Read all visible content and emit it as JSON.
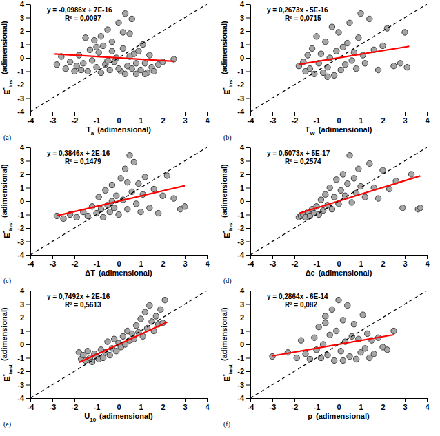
{
  "chart_data": [
    {
      "type": "scatter",
      "panel_label": "(a)",
      "x_label": {
        "text": "T",
        "sub": "a",
        "unit": "(adimensional)"
      },
      "y_label": {
        "text": "E",
        "sup": "*",
        "sub": "inst",
        "unit": "(adimensional)"
      },
      "annotations": [
        "y = -0,0986x + 7E-16",
        "R² = 0,0097"
      ],
      "xlim": [
        -4,
        4
      ],
      "ylim": [
        -4,
        4
      ],
      "xticks": [
        -4,
        -3,
        -2,
        -1,
        0,
        1,
        2,
        3,
        4
      ],
      "yticks": [
        -4,
        -3,
        -2,
        -1,
        0,
        1,
        2,
        3,
        4
      ],
      "grid": false,
      "series": [
        {
          "type": "scatter",
          "marker": "circle",
          "color": "#a6a6a6",
          "x": [
            -2.8,
            -2.6,
            -2.4,
            -2.2,
            -2.0,
            -1.9,
            -1.8,
            -1.7,
            -1.6,
            -1.5,
            -1.4,
            -1.3,
            -1.2,
            -1.1,
            -1.0,
            -0.9,
            -0.8,
            -0.7,
            -0.6,
            -0.5,
            -0.4,
            -0.3,
            -0.2,
            -0.1,
            0.0,
            0.1,
            0.2,
            0.3,
            0.4,
            0.5,
            0.6,
            0.7,
            0.8,
            0.9,
            1.0,
            1.1,
            1.2,
            1.3,
            1.4,
            1.5,
            1.6,
            1.8,
            2.0,
            2.5,
            -1.0,
            -0.5,
            0.2,
            0.3,
            0.6,
            -0.3,
            0.8,
            1.2,
            -0.8,
            0.0,
            0.5
          ],
          "values": [
            -0.5,
            0.1,
            -0.8,
            -0.3,
            -1.0,
            -0.6,
            0.2,
            -0.9,
            -0.4,
            1.5,
            -1.0,
            0.6,
            -0.2,
            1.3,
            -0.7,
            0.4,
            -1.1,
            0.9,
            -0.5,
            2.1,
            -0.9,
            1.2,
            -0.3,
            0.0,
            2.6,
            -1.0,
            0.7,
            3.3,
            -0.6,
            1.8,
            -0.8,
            0.3,
            -1.2,
            0.5,
            -0.9,
            1.0,
            -0.4,
            -1.1,
            0.2,
            -0.7,
            -1.0,
            -0.5,
            -0.3,
            -0.1,
            0.8,
            -0.2,
            1.9,
            -1.2,
            2.9,
            0.5,
            -0.4,
            -1.2,
            1.6,
            -0.8,
            0.1
          ]
        },
        {
          "type": "line",
          "line_style": "solid",
          "color": "#ff0000",
          "x": [
            -2.9,
            2.5
          ],
          "values": [
            0.29,
            -0.25
          ]
        },
        {
          "type": "line",
          "line_style": "dashed",
          "color": "#000000",
          "x": [
            -4,
            4
          ],
          "values": [
            -4,
            4
          ]
        }
      ]
    },
    {
      "type": "scatter",
      "panel_label": "(b)",
      "x_label": {
        "text": "T",
        "sub": "W",
        "unit": "(adimensional)"
      },
      "y_label": {
        "text": "E",
        "sup": "*",
        "sub": "inst",
        "unit": "(adimensional)"
      },
      "annotations": [
        "y = 0,2673x - 5E-16",
        "R² = 0,0715"
      ],
      "xlim": [
        -4,
        4
      ],
      "ylim": [
        -4,
        4
      ],
      "xticks": [
        -4,
        -3,
        -2,
        -1,
        0,
        1,
        2,
        3,
        4
      ],
      "yticks": [
        -4,
        -3,
        -2,
        -1,
        0,
        1,
        2,
        3,
        4
      ],
      "grid": false,
      "series": [
        {
          "type": "scatter",
          "marker": "circle",
          "color": "#a6a6a6",
          "x": [
            -1.8,
            -1.6,
            -1.5,
            -1.4,
            -1.3,
            -1.2,
            -1.1,
            -1.0,
            -0.9,
            -0.8,
            -0.7,
            -0.6,
            -0.5,
            -0.4,
            -0.3,
            -0.2,
            -0.1,
            0.0,
            0.1,
            0.2,
            0.3,
            0.4,
            0.5,
            0.6,
            0.7,
            0.8,
            0.9,
            1.0,
            1.1,
            1.2,
            1.4,
            1.6,
            1.8,
            2.0,
            2.2,
            2.5,
            2.8,
            3.0,
            3.1,
            -0.5
          ],
          "values": [
            -0.6,
            -0.3,
            -1.0,
            0.2,
            -0.8,
            0.7,
            -1.2,
            1.6,
            -0.4,
            0.3,
            -1.1,
            1.2,
            -0.7,
            0.0,
            2.3,
            -1.3,
            0.5,
            1.9,
            -0.9,
            0.8,
            -0.5,
            1.1,
            2.6,
            -0.2,
            0.4,
            -0.8,
            1.5,
            3.3,
            0.2,
            -0.4,
            2.9,
            0.6,
            -0.9,
            0.9,
            2.2,
            -0.6,
            -0.4,
            1.9,
            -0.7,
            -1.4
          ]
        },
        {
          "type": "line",
          "line_style": "solid",
          "color": "#ff0000",
          "x": [
            -1.8,
            3.2
          ],
          "values": [
            -0.48,
            0.86
          ]
        },
        {
          "type": "line",
          "line_style": "dashed",
          "color": "#000000",
          "x": [
            -4,
            4
          ],
          "values": [
            -4,
            4
          ]
        }
      ]
    },
    {
      "type": "scatter",
      "panel_label": "(c)",
      "x_label": {
        "text": "ΔT",
        "unit": "(adimensional)"
      },
      "y_label": {
        "text": "E",
        "sup": "*",
        "sub": "inst",
        "unit": "(adimensional)"
      },
      "annotations": [
        "y = 0,3846x + 2E-16",
        "R² = 0,1479"
      ],
      "xlim": [
        -4,
        4
      ],
      "ylim": [
        -4,
        4
      ],
      "xticks": [
        -4,
        -3,
        -2,
        -1,
        0,
        1,
        2,
        3,
        4
      ],
      "yticks": [
        -4,
        -3,
        -2,
        -1,
        0,
        1,
        2,
        3,
        4
      ],
      "grid": false,
      "series": [
        {
          "type": "scatter",
          "marker": "circle",
          "color": "#a6a6a6",
          "x": [
            -2.8,
            -2.5,
            -2.2,
            -1.9,
            -1.6,
            -1.4,
            -1.2,
            -1.0,
            -0.9,
            -0.8,
            -0.7,
            -0.6,
            -0.5,
            -0.4,
            -0.3,
            -0.2,
            -0.1,
            0.0,
            0.1,
            0.2,
            0.3,
            0.4,
            0.5,
            0.6,
            0.7,
            0.8,
            0.9,
            1.0,
            1.1,
            1.2,
            1.4,
            1.6,
            1.8,
            2.0,
            2.2,
            2.5,
            2.8,
            3.0,
            0.4,
            -0.3
          ],
          "values": [
            -1.1,
            -1.3,
            -1.0,
            -1.2,
            -0.8,
            -1.1,
            -0.4,
            -0.9,
            0.3,
            -0.6,
            -1.2,
            0.8,
            -0.3,
            -0.8,
            1.2,
            -0.5,
            0.4,
            -1.0,
            1.7,
            0.1,
            2.4,
            -0.6,
            3.4,
            0.7,
            2.9,
            -0.2,
            1.3,
            -0.8,
            0.5,
            1.8,
            -0.5,
            0.9,
            -0.9,
            0.4,
            1.9,
            0.2,
            -0.6,
            -0.4,
            1.4,
            0.0
          ]
        },
        {
          "type": "line",
          "line_style": "solid",
          "color": "#ff0000",
          "x": [
            -2.8,
            3.0
          ],
          "values": [
            -1.08,
            1.15
          ]
        },
        {
          "type": "line",
          "line_style": "dashed",
          "color": "#000000",
          "x": [
            -4,
            4
          ],
          "values": [
            -4,
            4
          ]
        }
      ]
    },
    {
      "type": "scatter",
      "panel_label": "(d)",
      "x_label": {
        "text": "Δe",
        "unit": "(adimensional)"
      },
      "y_label": {
        "text": "E",
        "sup": "*",
        "sub": "inst",
        "unit": "(adimensional)"
      },
      "annotations": [
        "y = 0,5073x + 5E-17",
        "R² = 0,2574"
      ],
      "xlim": [
        -4,
        4
      ],
      "ylim": [
        -4,
        4
      ],
      "xticks": [
        -4,
        -3,
        -2,
        -1,
        0,
        1,
        2,
        3,
        4
      ],
      "yticks": [
        -4,
        -3,
        -2,
        -1,
        0,
        1,
        2,
        3,
        4
      ],
      "grid": false,
      "series": [
        {
          "type": "scatter",
          "marker": "circle",
          "color": "#a6a6a6",
          "x": [
            -1.8,
            -1.7,
            -1.6,
            -1.5,
            -1.4,
            -1.3,
            -1.2,
            -1.1,
            -1.0,
            -0.9,
            -0.8,
            -0.7,
            -0.6,
            -0.5,
            -0.4,
            -0.3,
            -0.2,
            -0.1,
            0.0,
            0.1,
            0.2,
            0.3,
            0.4,
            0.5,
            0.6,
            0.7,
            0.8,
            0.9,
            1.0,
            1.2,
            1.4,
            1.6,
            1.8,
            2.0,
            2.3,
            2.6,
            2.9,
            3.3,
            3.6,
            3.7
          ],
          "values": [
            -1.2,
            -1.1,
            -1.0,
            -1.2,
            -0.8,
            -1.1,
            -0.6,
            -0.9,
            -0.4,
            -1.0,
            0.1,
            -0.7,
            0.5,
            -0.3,
            1.0,
            -0.6,
            0.3,
            1.6,
            -0.2,
            0.8,
            2.0,
            0.4,
            1.3,
            3.4,
            -0.1,
            1.7,
            0.6,
            2.4,
            1.1,
            0.3,
            2.8,
            1.0,
            0.2,
            2.3,
            0.9,
            1.5,
            -0.5,
            2.0,
            -0.6,
            -0.5
          ]
        },
        {
          "type": "line",
          "line_style": "solid",
          "color": "#ff0000",
          "x": [
            -1.8,
            3.7
          ],
          "values": [
            -0.91,
            1.88
          ]
        },
        {
          "type": "line",
          "line_style": "dashed",
          "color": "#000000",
          "x": [
            -4,
            4
          ],
          "values": [
            -4,
            4
          ]
        }
      ]
    },
    {
      "type": "scatter",
      "panel_label": "(e)",
      "x_label": {
        "text": "U",
        "sub": "10",
        "unit": "(adimensional)"
      },
      "y_label": {
        "text": "E",
        "sup": "*",
        "sub": "inst",
        "unit": "(adimensional)"
      },
      "annotations": [
        "y = 0,7492x + 2E-16",
        "R² = 0,5613"
      ],
      "xlim": [
        -4,
        4
      ],
      "ylim": [
        -4,
        4
      ],
      "xticks": [
        -4,
        -3,
        -2,
        -1,
        0,
        1,
        2,
        3,
        4
      ],
      "yticks": [
        -4,
        -3,
        -2,
        -1,
        0,
        1,
        2,
        3,
        4
      ],
      "grid": false,
      "series": [
        {
          "type": "scatter",
          "marker": "circle",
          "color": "#a6a6a6",
          "x": [
            -1.8,
            -1.7,
            -1.6,
            -1.5,
            -1.4,
            -1.3,
            -1.2,
            -1.1,
            -1.0,
            -0.9,
            -0.8,
            -0.7,
            -0.6,
            -0.5,
            -0.4,
            -0.3,
            -0.2,
            -0.1,
            0.0,
            0.1,
            0.2,
            0.3,
            0.4,
            0.5,
            0.6,
            0.7,
            0.8,
            0.9,
            1.0,
            1.1,
            1.2,
            1.3,
            1.4,
            1.5,
            1.6,
            1.7,
            1.8,
            1.9,
            2.0,
            2.1
          ],
          "values": [
            -0.6,
            -1.1,
            -0.8,
            -1.2,
            -0.5,
            -1.0,
            -1.3,
            -0.7,
            -0.9,
            -1.1,
            -0.4,
            -1.0,
            -0.6,
            0.2,
            -0.8,
            -0.3,
            0.4,
            -0.5,
            0.1,
            -0.2,
            0.6,
            0.0,
            1.0,
            0.3,
            0.8,
            0.4,
            1.4,
            0.9,
            1.9,
            0.6,
            2.4,
            1.2,
            2.9,
            1.7,
            1.0,
            2.1,
            1.5,
            2.6,
            1.6,
            3.3
          ]
        },
        {
          "type": "line",
          "line_style": "solid",
          "color": "#ff0000",
          "x": [
            -1.8,
            2.2
          ],
          "values": [
            -1.35,
            1.65
          ]
        },
        {
          "type": "line",
          "line_style": "dashed",
          "color": "#000000",
          "x": [
            -4,
            4
          ],
          "values": [
            -4,
            4
          ]
        }
      ]
    },
    {
      "type": "scatter",
      "panel_label": "(f)",
      "x_label": {
        "text": "p",
        "unit": "(adimensional)"
      },
      "y_label": {
        "text": "E",
        "sup": "*",
        "sub": "inst",
        "unit": "(adimensional)"
      },
      "annotations": [
        "y = 0,2864x - 6E-14",
        "R² = 0,082"
      ],
      "xlim": [
        -4,
        4
      ],
      "ylim": [
        -4,
        4
      ],
      "xticks": [
        -4,
        -3,
        -2,
        -1,
        0,
        1,
        2,
        3,
        4
      ],
      "yticks": [
        -4,
        -3,
        -2,
        -1,
        0,
        1,
        2,
        3,
        4
      ],
      "grid": false,
      "series": [
        {
          "type": "scatter",
          "marker": "circle",
          "color": "#a6a6a6",
          "x": [
            -3.0,
            -2.3,
            -1.9,
            -1.7,
            -1.5,
            -1.3,
            -1.1,
            -1.0,
            -0.9,
            -0.8,
            -0.7,
            -0.6,
            -0.5,
            -0.4,
            -0.3,
            -0.2,
            -0.1,
            0.0,
            0.1,
            0.2,
            0.3,
            0.4,
            0.5,
            0.6,
            0.7,
            0.8,
            0.9,
            1.0,
            1.1,
            1.2,
            1.3,
            1.4,
            1.5,
            1.6,
            1.8,
            2.0,
            2.2,
            2.5,
            0.2,
            -0.6
          ],
          "values": [
            -0.9,
            -0.6,
            -1.0,
            0.3,
            -0.7,
            -1.1,
            0.5,
            -0.4,
            1.3,
            -1.0,
            0.0,
            2.1,
            -0.8,
            0.7,
            2.6,
            -1.2,
            1.0,
            3.3,
            -0.5,
            1.8,
            0.2,
            2.9,
            -0.9,
            0.6,
            1.5,
            -1.1,
            0.4,
            -0.6,
            2.2,
            -0.3,
            0.8,
            -1.0,
            0.3,
            -0.7,
            0.5,
            -0.2,
            -0.4,
            1.0,
            -1.2,
            1.6
          ]
        },
        {
          "type": "line",
          "line_style": "solid",
          "color": "#ff0000",
          "x": [
            -3.0,
            2.5
          ],
          "values": [
            -0.86,
            0.72
          ]
        },
        {
          "type": "line",
          "line_style": "dashed",
          "color": "#000000",
          "x": [
            -4,
            4
          ],
          "values": [
            -4,
            4
          ]
        }
      ]
    }
  ]
}
